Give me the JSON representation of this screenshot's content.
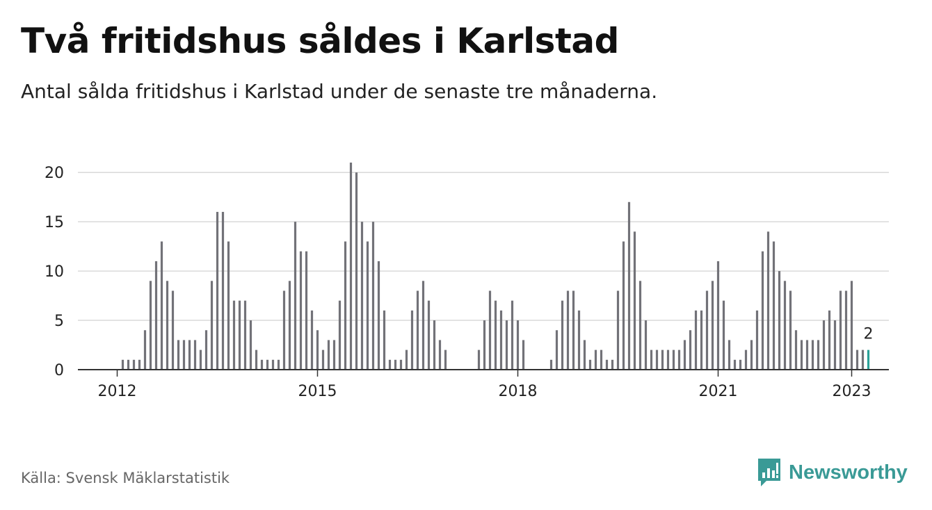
{
  "title": "Två fritidshus såldes i Karlstad",
  "subtitle": "Antal sålda fritidshus i Karlstad under de senaste tre månaderna.",
  "source": "Källa: Svensk Mäklarstatistik",
  "brand": {
    "name": "Newsworthy",
    "icon": "newsworthy-logo-icon"
  },
  "colors": {
    "bar": "#727278",
    "highlight": "#2aa198",
    "grid": "#d9d9d9",
    "axis": "#333333",
    "brand": "#3a9a96"
  },
  "chart_data": {
    "type": "bar",
    "x_start": "2012-01",
    "x_end": "2023-01",
    "values": [
      0,
      1,
      1,
      1,
      1,
      4,
      9,
      11,
      13,
      9,
      8,
      3,
      3,
      3,
      3,
      2,
      4,
      9,
      16,
      16,
      13,
      7,
      7,
      7,
      5,
      2,
      1,
      1,
      1,
      1,
      8,
      9,
      15,
      12,
      12,
      6,
      4,
      2,
      3,
      3,
      7,
      13,
      21,
      20,
      15,
      13,
      15,
      11,
      6,
      1,
      1,
      1,
      2,
      6,
      8,
      9,
      7,
      5,
      3,
      2,
      0,
      0,
      0,
      0,
      0,
      2,
      5,
      8,
      7,
      6,
      5,
      7,
      5,
      3,
      0,
      0,
      0,
      0,
      1,
      4,
      7,
      8,
      8,
      6,
      3,
      1,
      2,
      2,
      1,
      1,
      8,
      13,
      17,
      14,
      9,
      5,
      2,
      2,
      2,
      2,
      2,
      2,
      3,
      4,
      6,
      6,
      8,
      9,
      11,
      7,
      3,
      1,
      1,
      2,
      3,
      6,
      12,
      14,
      13,
      10,
      9,
      8,
      4,
      3,
      3,
      3,
      3,
      5,
      6,
      5,
      8,
      8,
      9,
      2,
      2,
      2
    ],
    "highlight_value": 2,
    "ylim": [
      0,
      21
    ],
    "yticks": [
      0,
      5,
      10,
      15,
      20
    ],
    "xticks": [
      "2012",
      "2015",
      "2018",
      "2021",
      "2023"
    ],
    "annotation": "2",
    "grid": true
  }
}
